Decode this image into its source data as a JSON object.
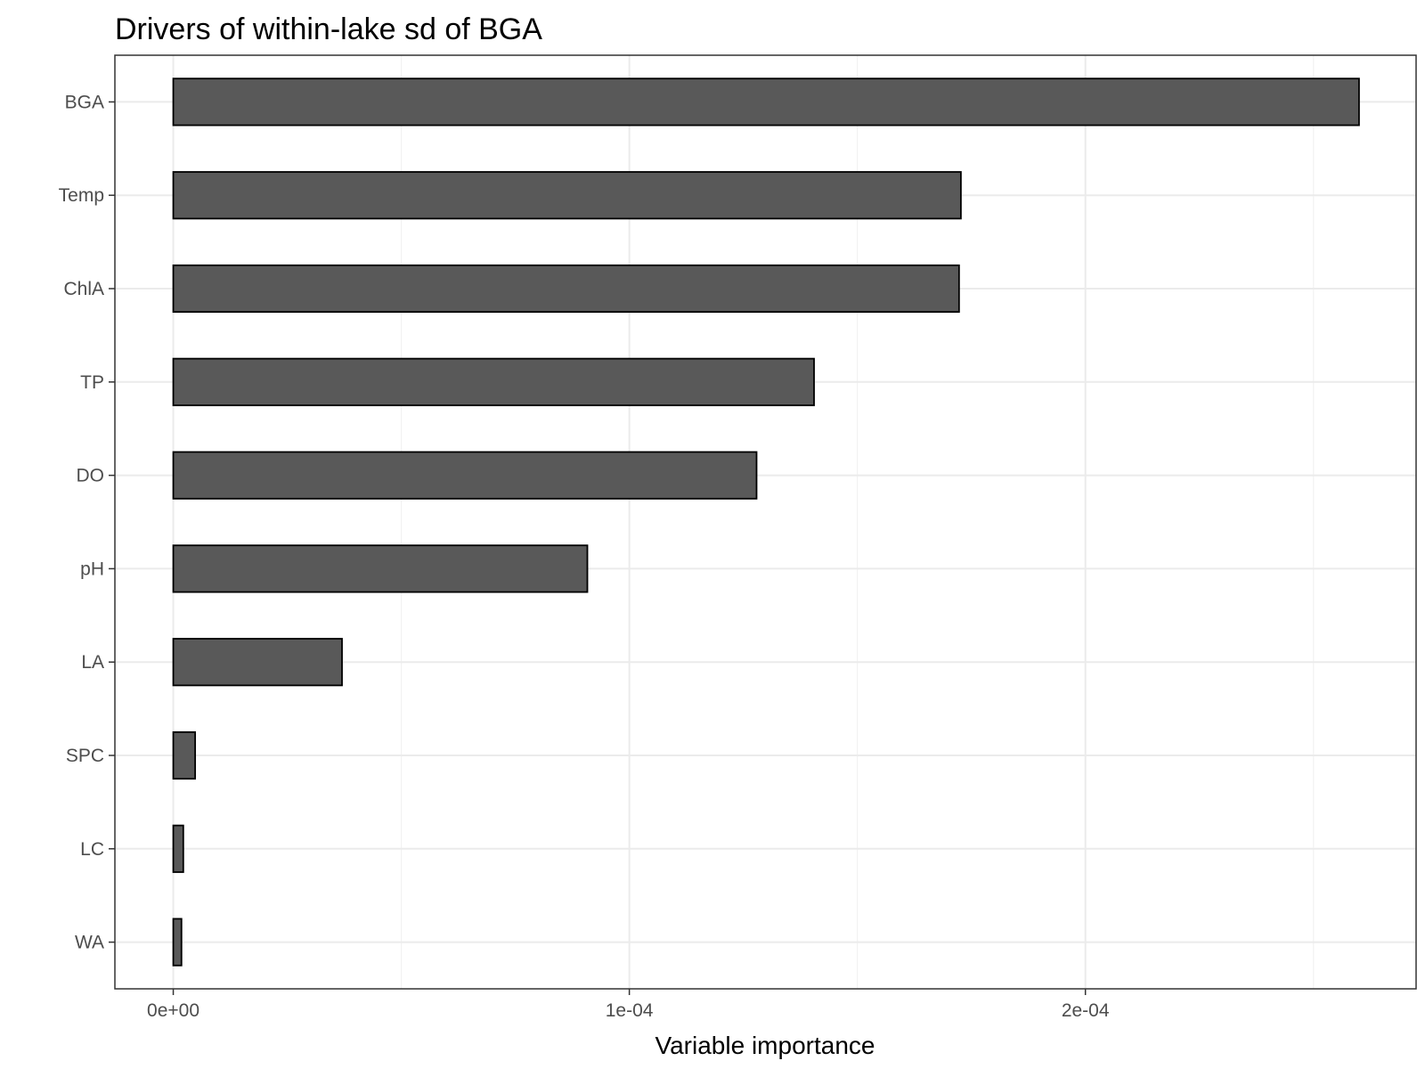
{
  "chart_data": {
    "type": "bar",
    "orientation": "horizontal",
    "title": "Drivers of within-lake sd of BGA",
    "xlabel": "Variable importance",
    "ylabel": "",
    "categories": [
      "BGA",
      "Temp",
      "ChlA",
      "TP",
      "DO",
      "pH",
      "LA",
      "SPC",
      "LC",
      "WA"
    ],
    "values": [
      0.00026,
      0.0001727,
      0.0001723,
      0.0001405,
      0.0001279,
      9.08e-05,
      3.7e-05,
      4.8e-06,
      2.2e-06,
      1.8e-06
    ],
    "xlim": [
      -1.28e-05,
      0.00027251
    ],
    "xticks": [
      0,
      0.0001,
      0.0002
    ],
    "xtick_labels": [
      "0e+00",
      "1e-04",
      "2e-04"
    ],
    "grid": true,
    "bar_fill": "#595959",
    "bar_stroke": "#000000",
    "theme": "bw"
  }
}
